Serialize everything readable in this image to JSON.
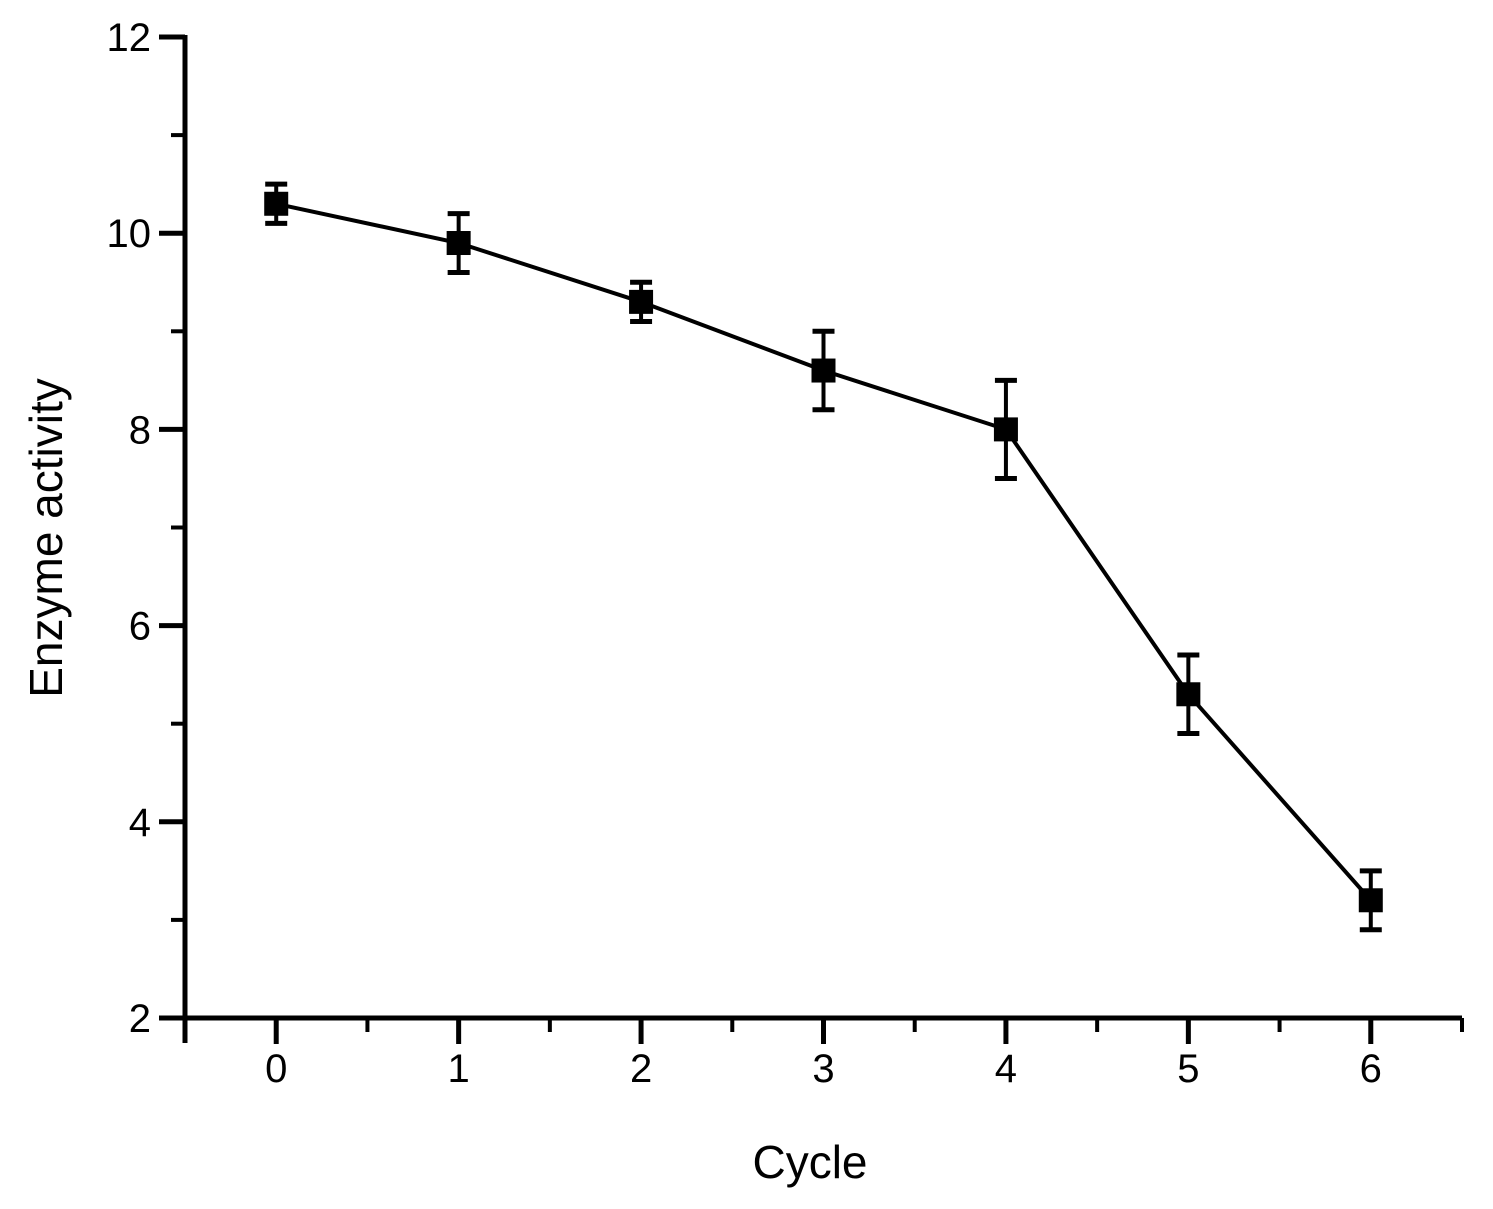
{
  "chart_data": {
    "type": "line",
    "title": "",
    "xlabel": "Cycle",
    "ylabel": "Enzyme activity",
    "x": [
      0,
      1,
      2,
      3,
      4,
      5,
      6
    ],
    "series": [
      {
        "name": "Enzyme activity",
        "values": [
          10.3,
          9.9,
          9.3,
          8.6,
          8.0,
          5.3,
          3.2
        ],
        "yerr": [
          0.2,
          0.3,
          0.2,
          0.4,
          0.5,
          0.4,
          0.3
        ],
        "marker": "filled-square",
        "line_style": "solid",
        "color": "#000000"
      }
    ],
    "xlim": [
      -0.5,
      6.5
    ],
    "ylim": [
      2,
      12
    ],
    "x_major_ticks": [
      0,
      1,
      2,
      3,
      4,
      5,
      6
    ],
    "x_minor_ticks": [
      0.5,
      1.5,
      2.5,
      3.5,
      4.5,
      5.5,
      6.5
    ],
    "y_major_ticks": [
      2,
      4,
      6,
      8,
      10,
      12
    ],
    "y_minor_ticks": [
      3,
      5,
      7,
      9,
      11
    ],
    "x_tick_labels": [
      "0",
      "1",
      "2",
      "3",
      "4",
      "5",
      "6"
    ],
    "y_tick_labels": [
      "2",
      "4",
      "6",
      "8",
      "10",
      "12"
    ],
    "grid": false,
    "legend": false,
    "background_color": "#ffffff",
    "axis_color": "#000000"
  }
}
